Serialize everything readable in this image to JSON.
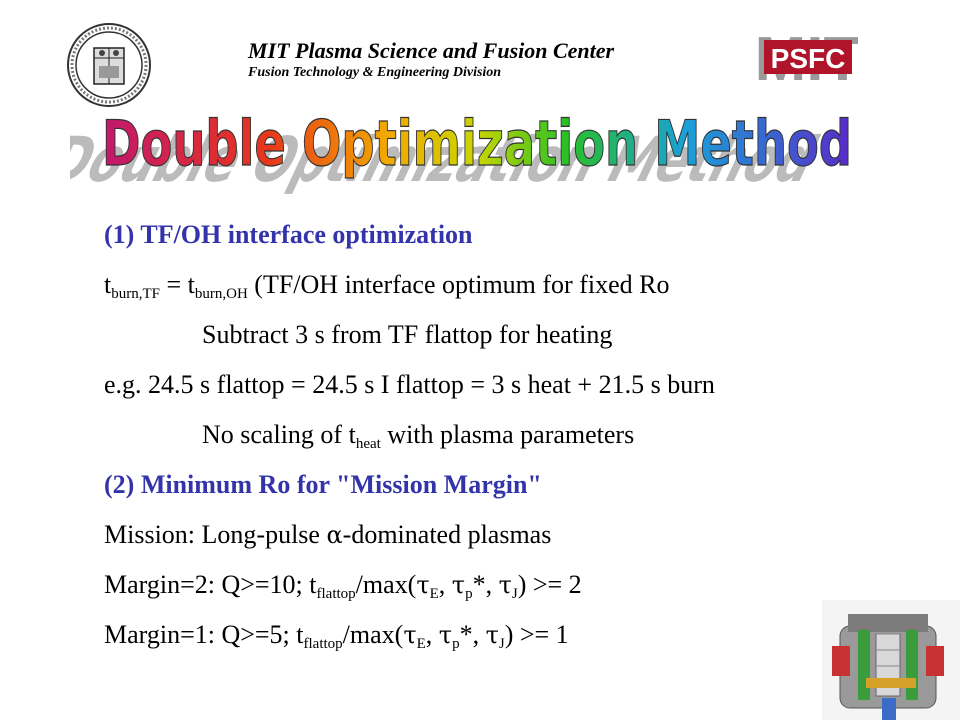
{
  "header": {
    "org": "MIT Plasma Science and Fusion Center",
    "division": "Fusion Technology & Engineering Division",
    "logo_text": "PSFC",
    "logo_back": "MIT"
  },
  "title": "Double Optimization Method",
  "colors": {
    "heading_blue": "#3333aa",
    "logo_red": "#b0142a",
    "logo_gray": "#8a8a8a"
  },
  "icons": [
    "university-seal-icon",
    "psfc-logo-icon",
    "tokamak-image-icon"
  ],
  "section1": {
    "heading": "(1) TF/OH interface optimization",
    "eq_t1": "t",
    "eq_sub1": "burn,TF",
    "eq_mid": " = t",
    "eq_sub2": "burn,OH",
    "eq_rest": " (TF/OH interface optimum for fixed Ro",
    "subtract": "Subtract 3 s from TF flattop for heating",
    "example": "e.g. 24.5 s flattop = 24.5 s I flattop = 3 s heat + 21.5 s burn",
    "noscale_a": "No scaling of t",
    "noscale_sub": "heat",
    "noscale_b": " with plasma parameters"
  },
  "section2": {
    "heading": "(2) Minimum Ro for \"Mission Margin\"",
    "mission_a": "Mission: Long-pulse ",
    "mission_alpha": "α",
    "mission_b": "-dominated plasmas",
    "m2": {
      "a": "Margin=2: Q>=10; t",
      "sub_flattop": "flattop",
      "b": "/max(",
      "tau": "τ",
      "sub_E": "E",
      "c": ", ",
      "sub_p": "p",
      "d": "*, ",
      "sub_J": "J",
      "e": ") >= 2"
    },
    "m1": {
      "a": "Margin=1: Q>=5; t",
      "sub_flattop": "flattop",
      "b": "/max(",
      "tau": "τ",
      "sub_E": "E",
      "c": ", ",
      "sub_p": "p",
      "d": "*, ",
      "sub_J": "J",
      "e": ") >= 1"
    }
  }
}
